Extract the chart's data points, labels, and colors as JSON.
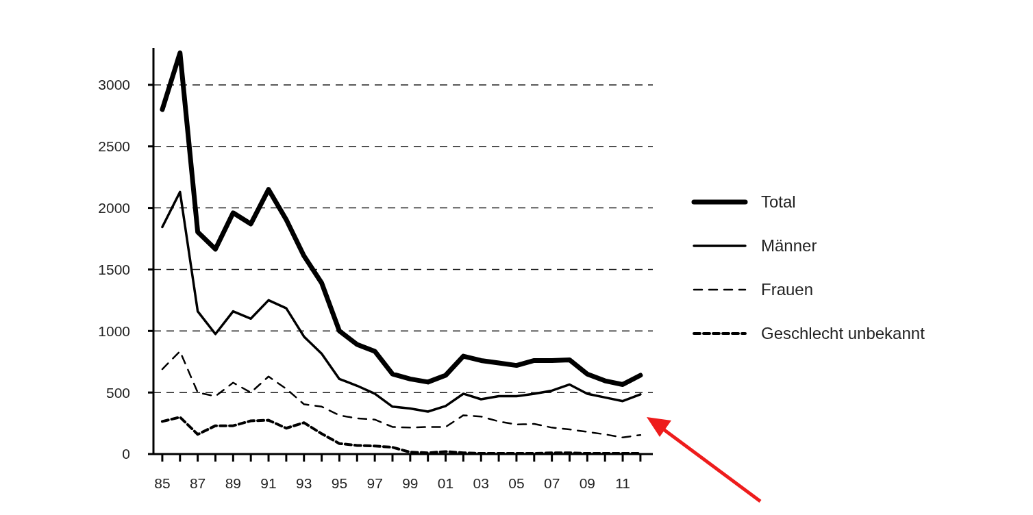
{
  "chart_data": {
    "type": "line",
    "x": [
      1985,
      1986,
      1987,
      1988,
      1989,
      1990,
      1991,
      1992,
      1993,
      1994,
      1995,
      1996,
      1997,
      1998,
      1999,
      2000,
      2001,
      2002,
      2003,
      2004,
      2005,
      2006,
      2007,
      2008,
      2009,
      2010,
      2011,
      2012
    ],
    "series": [
      {
        "name": "Total",
        "color": "#000000",
        "line_style": "solid",
        "values": [
          2800,
          3260,
          1805,
          1665,
          1960,
          1870,
          2150,
          1905,
          1610,
          1390,
          1000,
          890,
          835,
          650,
          610,
          585,
          640,
          795,
          760,
          740,
          720,
          760,
          760,
          765,
          650,
          595,
          565,
          640
        ]
      },
      {
        "name": "Männer",
        "color": "#000000",
        "line_style": "solid",
        "values": [
          1845,
          2130,
          1160,
          975,
          1160,
          1100,
          1250,
          1185,
          955,
          815,
          610,
          555,
          490,
          385,
          370,
          345,
          390,
          490,
          445,
          470,
          470,
          490,
          515,
          565,
          490,
          460,
          430,
          485
        ]
      },
      {
        "name": "Frauen",
        "color": "#000000",
        "line_style": "dashed",
        "values": [
          690,
          835,
          500,
          470,
          580,
          500,
          630,
          530,
          405,
          385,
          315,
          290,
          280,
          220,
          215,
          220,
          220,
          315,
          305,
          265,
          240,
          245,
          215,
          200,
          180,
          160,
          135,
          155
        ]
      },
      {
        "name": "Geschlecht unbekannt",
        "color": "#000000",
        "line_style": "dotted",
        "values": [
          265,
          300,
          160,
          230,
          230,
          270,
          275,
          210,
          255,
          165,
          85,
          70,
          65,
          55,
          15,
          10,
          20,
          10,
          5,
          5,
          5,
          5,
          10,
          10,
          5,
          5,
          5,
          5
        ]
      }
    ],
    "xlim": [
      1984.5,
      2012.7
    ],
    "xticks": [
      {
        "value": 1985,
        "label": "85"
      },
      {
        "value": 1986,
        "label": null
      },
      {
        "value": 1987,
        "label": "87"
      },
      {
        "value": 1988,
        "label": null
      },
      {
        "value": 1989,
        "label": "89"
      },
      {
        "value": 1990,
        "label": null
      },
      {
        "value": 1991,
        "label": "91"
      },
      {
        "value": 1992,
        "label": null
      },
      {
        "value": 1993,
        "label": "93"
      },
      {
        "value": 1994,
        "label": null
      },
      {
        "value": 1995,
        "label": "95"
      },
      {
        "value": 1996,
        "label": null
      },
      {
        "value": 1997,
        "label": "97"
      },
      {
        "value": 1998,
        "label": null
      },
      {
        "value": 1999,
        "label": "99"
      },
      {
        "value": 2000,
        "label": null
      },
      {
        "value": 2001,
        "label": "01"
      },
      {
        "value": 2002,
        "label": null
      },
      {
        "value": 2003,
        "label": "03"
      },
      {
        "value": 2004,
        "label": null
      },
      {
        "value": 2005,
        "label": "05"
      },
      {
        "value": 2006,
        "label": null
      },
      {
        "value": 2007,
        "label": "07"
      },
      {
        "value": 2008,
        "label": null
      },
      {
        "value": 2009,
        "label": "09"
      },
      {
        "value": 2010,
        "label": null
      },
      {
        "value": 2011,
        "label": "11"
      },
      {
        "value": 2012,
        "label": null
      }
    ],
    "ylim": [
      0,
      3300
    ],
    "yticks": [
      0,
      500,
      1000,
      1500,
      2000,
      2500,
      3000
    ],
    "grid": "y",
    "legend": "right",
    "marker": "none"
  }
}
